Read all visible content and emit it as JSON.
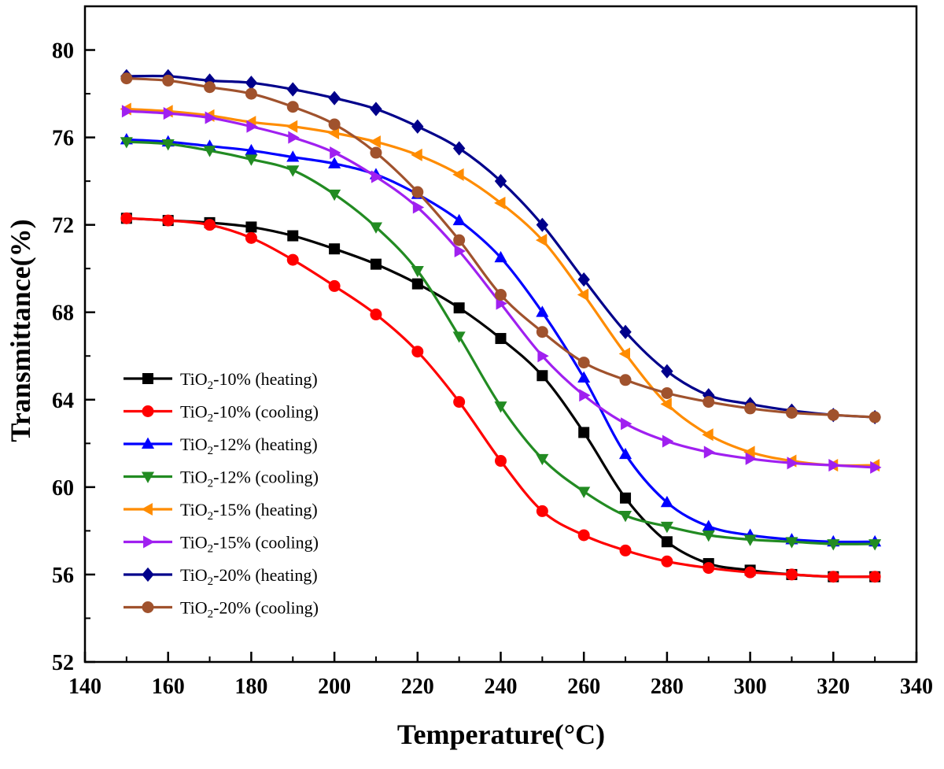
{
  "chart_data": {
    "type": "line",
    "title": "",
    "xlabel": "Temperature(°C)",
    "ylabel": "Transmittance(%)",
    "xlim": [
      140,
      340
    ],
    "ylim": [
      52,
      82
    ],
    "xticks": [
      140,
      160,
      180,
      200,
      220,
      240,
      260,
      280,
      300,
      320,
      340
    ],
    "yticks": [
      52,
      56,
      60,
      64,
      68,
      72,
      76,
      80
    ],
    "grid": false,
    "legend_position": "bottom-left",
    "x": [
      150,
      160,
      170,
      180,
      190,
      200,
      210,
      220,
      230,
      240,
      250,
      260,
      270,
      280,
      290,
      300,
      310,
      320,
      330
    ],
    "series": [
      {
        "name": "TiO2-10% (heating)",
        "label_prefix": "TiO",
        "label_sub": "2",
        "label_suffix": "-10% (heating)",
        "color": "#000000",
        "marker": "square",
        "values": [
          72.3,
          72.2,
          72.1,
          71.9,
          71.5,
          70.9,
          70.2,
          69.3,
          68.2,
          66.8,
          65.1,
          62.5,
          59.5,
          57.5,
          56.5,
          56.2,
          56.0,
          55.9,
          55.9
        ]
      },
      {
        "name": "TiO2-10% (cooling)",
        "label_prefix": "TiO",
        "label_sub": "2",
        "label_suffix": "-10% (cooling)",
        "color": "#ff0000",
        "marker": "circle",
        "values": [
          72.3,
          72.2,
          72.0,
          71.4,
          70.4,
          69.2,
          67.9,
          66.2,
          63.9,
          61.2,
          58.9,
          57.8,
          57.1,
          56.6,
          56.3,
          56.1,
          56.0,
          55.9,
          55.9
        ]
      },
      {
        "name": "TiO2-12% (heating)",
        "label_prefix": "TiO",
        "label_sub": "2",
        "label_suffix": "-12% (heating)",
        "color": "#0000ff",
        "marker": "triangle-up",
        "values": [
          75.9,
          75.8,
          75.6,
          75.4,
          75.1,
          74.8,
          74.3,
          73.4,
          72.2,
          70.5,
          68.0,
          65.0,
          61.5,
          59.3,
          58.2,
          57.8,
          57.6,
          57.5,
          57.5
        ]
      },
      {
        "name": "TiO2-12% (cooling)",
        "label_prefix": "TiO",
        "label_sub": "2",
        "label_suffix": "-12% (cooling)",
        "color": "#228b22",
        "marker": "triangle-down",
        "values": [
          75.8,
          75.7,
          75.4,
          75.0,
          74.5,
          73.4,
          71.9,
          69.9,
          66.9,
          63.7,
          61.3,
          59.8,
          58.7,
          58.2,
          57.8,
          57.6,
          57.5,
          57.4,
          57.4
        ]
      },
      {
        "name": "TiO2-15% (heating)",
        "label_prefix": "TiO",
        "label_sub": "2",
        "label_suffix": "-15% (heating)",
        "color": "#ff8c00",
        "marker": "triangle-left",
        "values": [
          77.3,
          77.2,
          77.0,
          76.7,
          76.5,
          76.2,
          75.8,
          75.2,
          74.3,
          73.0,
          71.3,
          68.8,
          66.1,
          63.8,
          62.4,
          61.6,
          61.2,
          61.0,
          61.0
        ]
      },
      {
        "name": "TiO2-15% (cooling)",
        "label_prefix": "TiO",
        "label_sub": "2",
        "label_suffix": "-15% (cooling)",
        "color": "#a020f0",
        "marker": "triangle-right",
        "values": [
          77.2,
          77.1,
          76.9,
          76.5,
          76.0,
          75.3,
          74.2,
          72.8,
          70.8,
          68.4,
          66.0,
          64.2,
          62.9,
          62.1,
          61.6,
          61.3,
          61.1,
          61.0,
          60.9
        ]
      },
      {
        "name": "TiO2-20% (heating)",
        "label_prefix": "TiO",
        "label_sub": "2",
        "label_suffix": "-20% (heating)",
        "color": "#00008b",
        "marker": "diamond",
        "values": [
          78.8,
          78.8,
          78.6,
          78.5,
          78.2,
          77.8,
          77.3,
          76.5,
          75.5,
          74.0,
          72.0,
          69.5,
          67.1,
          65.3,
          64.2,
          63.8,
          63.5,
          63.3,
          63.2
        ]
      },
      {
        "name": "TiO2-20% (cooling)",
        "label_prefix": "TiO",
        "label_sub": "2",
        "label_suffix": "-20% (cooling)",
        "color": "#a0522d",
        "marker": "circle",
        "values": [
          78.7,
          78.6,
          78.3,
          78.0,
          77.4,
          76.6,
          75.3,
          73.5,
          71.3,
          68.8,
          67.1,
          65.7,
          64.9,
          64.3,
          63.9,
          63.6,
          63.4,
          63.3,
          63.2
        ]
      }
    ]
  }
}
